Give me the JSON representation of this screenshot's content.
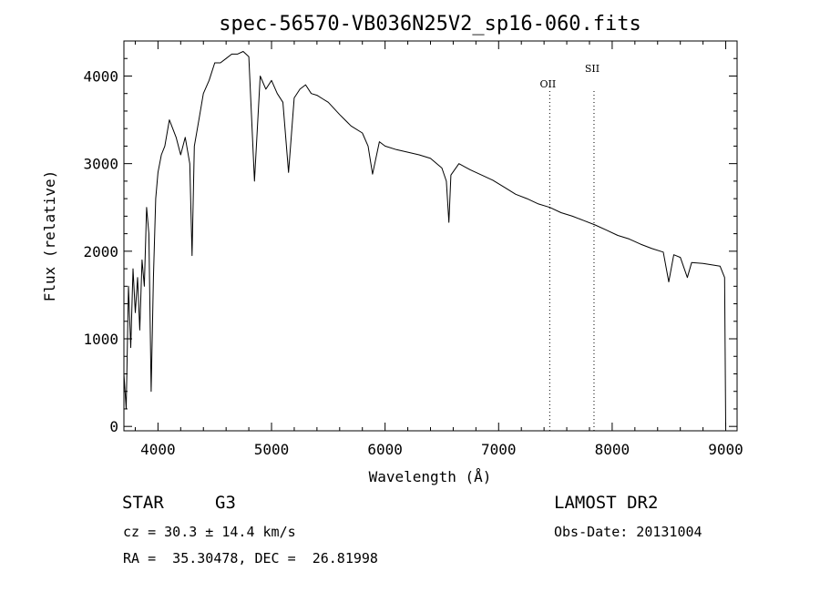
{
  "chart_data": {
    "type": "line",
    "title": "spec-56570-VB036N25V2_sp16-060.fits",
    "xlabel": "Wavelength (Å)",
    "ylabel": "Flux (relative)",
    "xlim": [
      3700,
      9100
    ],
    "ylim": [
      -50,
      4400
    ],
    "x_ticks": [
      4000,
      5000,
      6000,
      7000,
      8000,
      9000
    ],
    "y_ticks": [
      0,
      1000,
      2000,
      3000,
      4000
    ],
    "grid": false,
    "series": [
      {
        "x": [
          3700,
          3720,
          3740,
          3760,
          3780,
          3800,
          3820,
          3840,
          3860,
          3880,
          3900,
          3920,
          3940,
          3960,
          3980,
          4000,
          4030,
          4060,
          4100,
          4130,
          4160,
          4200,
          4240,
          4280,
          4300,
          4320,
          4360,
          4400,
          4450,
          4500,
          4550,
          4600,
          4650,
          4700,
          4750,
          4800,
          4850,
          4900,
          4950,
          5000,
          5050,
          5100,
          5150,
          5200,
          5250,
          5300,
          5350,
          5400,
          5450,
          5500,
          5600,
          5700,
          5800,
          5850,
          5890,
          5950,
          6000,
          6100,
          6200,
          6300,
          6400,
          6500,
          6540,
          6562,
          6580,
          6650,
          6750,
          6850,
          6950,
          7050,
          7150,
          7250,
          7350,
          7450,
          7550,
          7650,
          7750,
          7850,
          7950,
          8050,
          8150,
          8250,
          8350,
          8450,
          8498,
          8542,
          8600,
          8662,
          8700,
          8800,
          8900,
          8950,
          8990,
          9000
        ],
        "y": [
          600,
          200,
          1600,
          900,
          1800,
          1300,
          1700,
          1100,
          1900,
          1600,
          2500,
          2200,
          400,
          1700,
          2600,
          2900,
          3100,
          3200,
          3500,
          3400,
          3300,
          3100,
          3300,
          3000,
          1950,
          3200,
          3500,
          3800,
          3950,
          4150,
          4150,
          4200,
          4250,
          4250,
          4280,
          4220,
          2800,
          4000,
          3850,
          3950,
          3800,
          3700,
          2900,
          3750,
          3850,
          3900,
          3800,
          3780,
          3740,
          3700,
          3560,
          3430,
          3350,
          3200,
          2880,
          3250,
          3200,
          3160,
          3130,
          3100,
          3060,
          2950,
          2800,
          2330,
          2870,
          3000,
          2930,
          2870,
          2810,
          2730,
          2650,
          2600,
          2540,
          2500,
          2440,
          2400,
          2350,
          2300,
          2240,
          2180,
          2140,
          2080,
          2030,
          1990,
          1650,
          1960,
          1930,
          1700,
          1870,
          1860,
          1840,
          1830,
          1700,
          0
        ]
      }
    ],
    "annotations": [
      {
        "label": "OII",
        "x": 7450
      },
      {
        "label": "SII",
        "x": 7840
      }
    ]
  },
  "info": {
    "object_class": "STAR",
    "subclass": "G3",
    "cz_line": "cz = 30.3 ± 14.4 km/s",
    "radec_line": "RA =  35.30478, DEC =  26.81998",
    "survey": "LAMOST DR2",
    "obs_date": "Obs-Date: 20131004"
  }
}
